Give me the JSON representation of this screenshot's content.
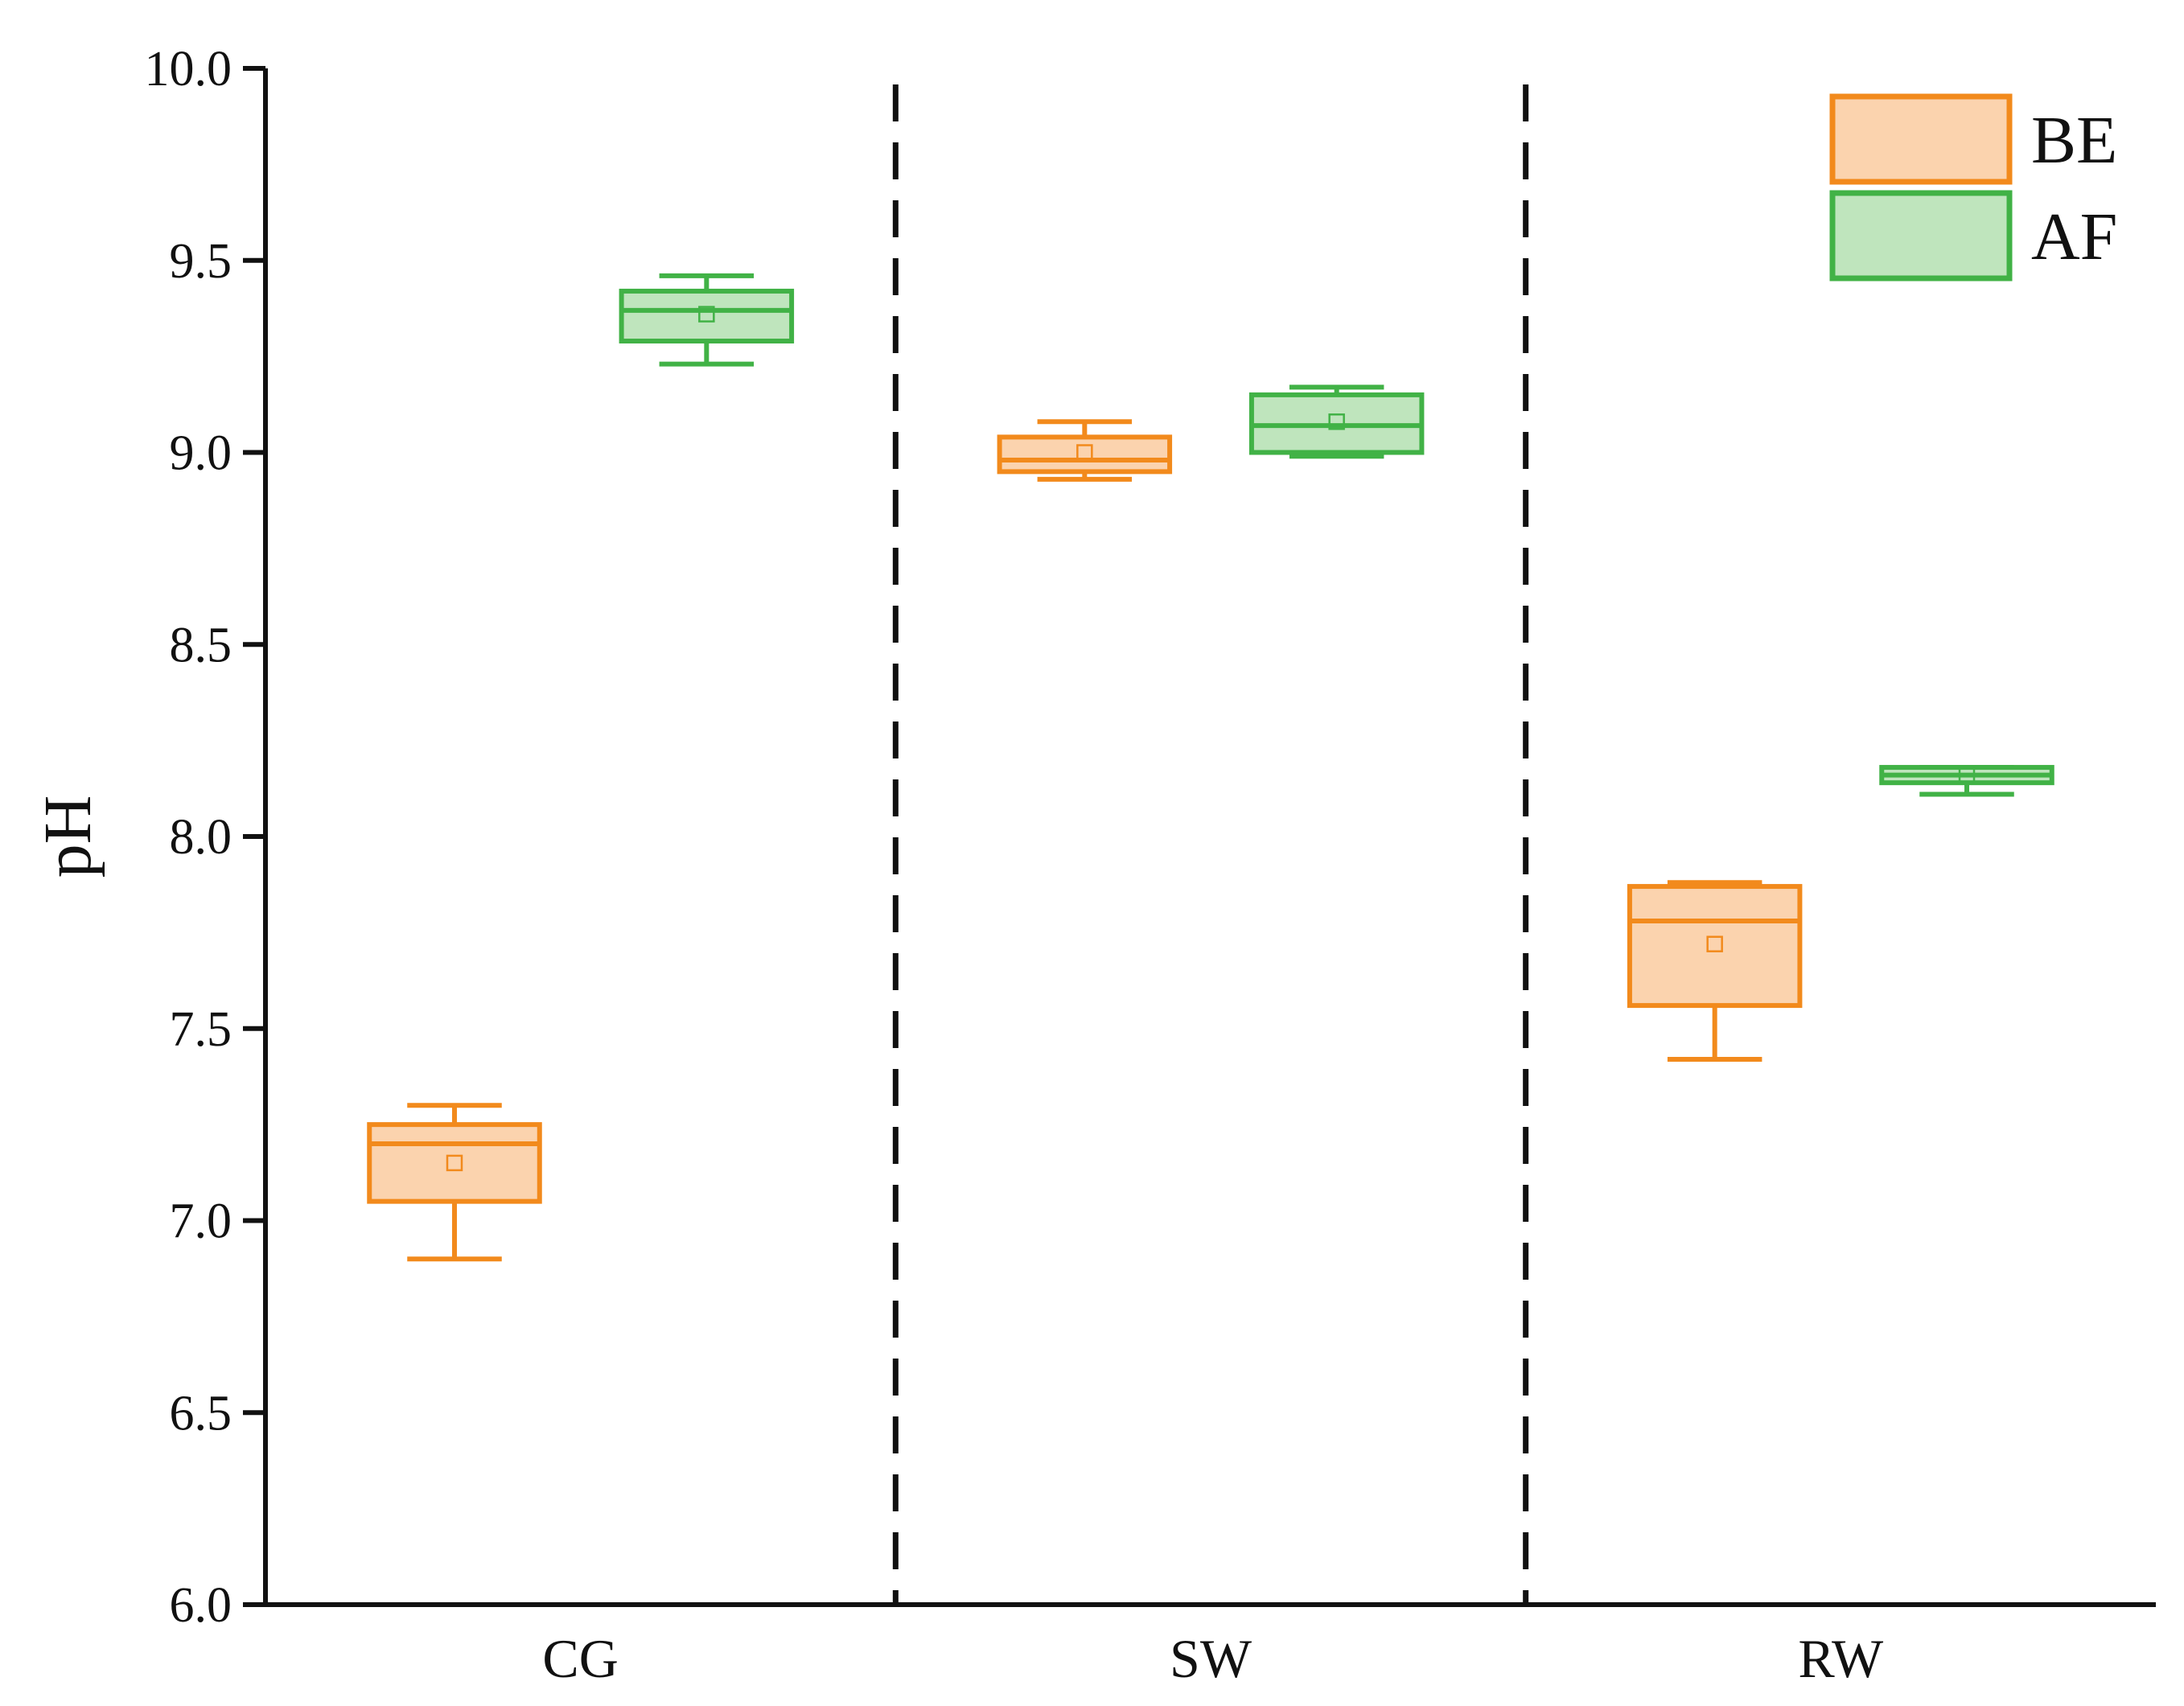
{
  "chart_data": {
    "type": "box",
    "ylabel": "pH",
    "xlabel": "",
    "ylim": [
      6.0,
      10.0
    ],
    "yticks": [
      "6.0",
      "6.5",
      "7.0",
      "7.5",
      "8.0",
      "8.5",
      "9.0",
      "9.5",
      "10.0"
    ],
    "categories": [
      "CG",
      "SW",
      "RW"
    ],
    "legend_position": "top-right",
    "grid": false,
    "group_separators": "dashed",
    "series": [
      {
        "name": "BE",
        "color": "#f28a1c",
        "fill": "#fbd3ae",
        "boxes": [
          {
            "category": "CG",
            "min": 6.9,
            "q1": 7.05,
            "median": 7.2,
            "q3": 7.25,
            "max": 7.3,
            "mean": 7.15
          },
          {
            "category": "SW",
            "min": 8.93,
            "q1": 8.95,
            "median": 8.98,
            "q3": 9.04,
            "max": 9.08,
            "mean": 9.0
          },
          {
            "category": "RW",
            "min": 7.42,
            "q1": 7.56,
            "median": 7.78,
            "q3": 7.87,
            "max": 7.88,
            "mean": 7.72
          }
        ]
      },
      {
        "name": "AF",
        "color": "#41b246",
        "fill": "#bfe5bd",
        "boxes": [
          {
            "category": "CG",
            "min": 9.23,
            "q1": 9.29,
            "median": 9.37,
            "q3": 9.42,
            "max": 9.46,
            "mean": 9.36
          },
          {
            "category": "SW",
            "min": 8.99,
            "q1": 9.0,
            "median": 9.07,
            "q3": 9.15,
            "max": 9.17,
            "mean": 9.08
          },
          {
            "category": "RW",
            "min": 8.11,
            "q1": 8.14,
            "median": 8.16,
            "q3": 8.18,
            "max": 8.18,
            "mean": 8.16
          }
        ]
      }
    ]
  }
}
